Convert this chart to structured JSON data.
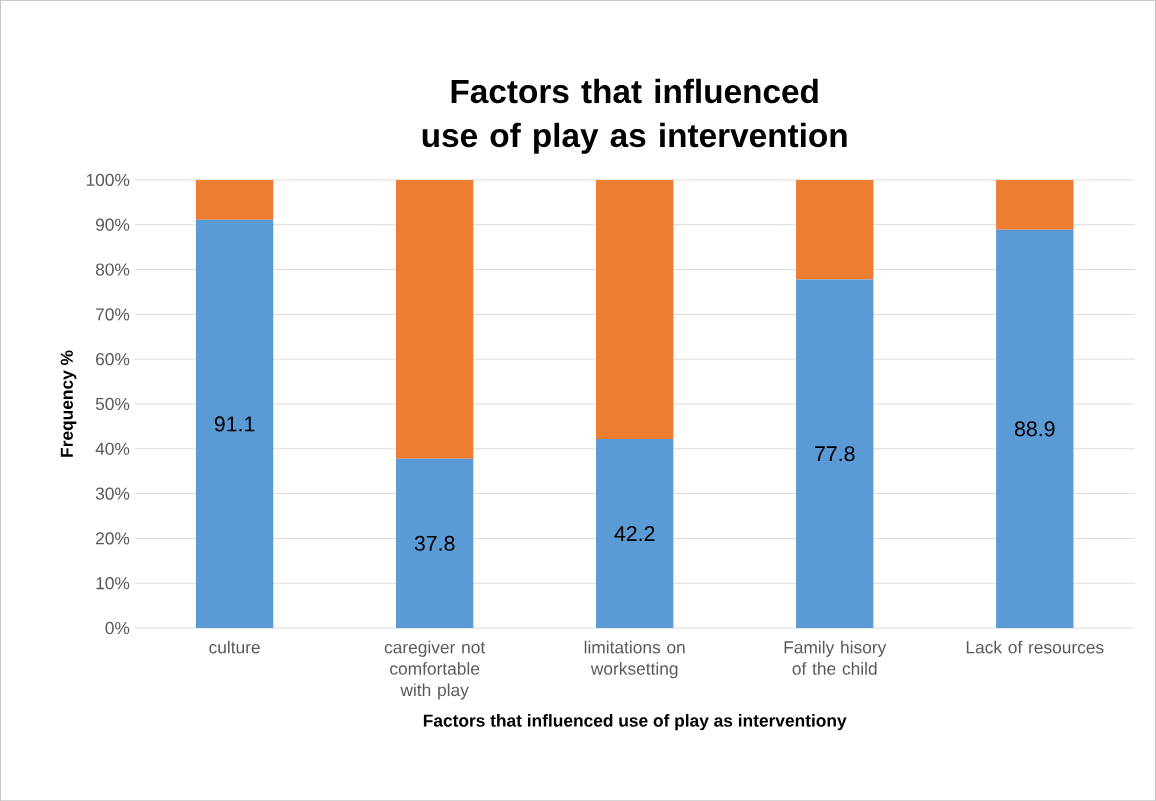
{
  "chart_data": {
    "type": "bar",
    "title": "Factors that influenced use of play as intervention",
    "xlabel": "Factors that influenced use of play as interventiony",
    "ylabel": "Frequency %",
    "categories": [
      "culture",
      "caregiver not comfortable with play",
      "limitations on worksetting",
      "Family hisory of the child",
      "Lack of resources"
    ],
    "series": [
      {
        "color": "#5b9bd5",
        "values": [
          91.1,
          37.8,
          42.2,
          77.8,
          88.9
        ],
        "value_labels": [
          "91.1",
          "37.8",
          "42.2",
          "77.8",
          "88.9"
        ]
      },
      {
        "color": "#ed7d31",
        "values": [
          8.9,
          62.2,
          57.8,
          22.2,
          11.1
        ]
      }
    ],
    "stacked": true,
    "ylim": [
      0,
      100
    ],
    "yticks": [
      {
        "value": 0,
        "label": "0%"
      },
      {
        "value": 10,
        "label": "10%"
      },
      {
        "value": 20,
        "label": "20%"
      },
      {
        "value": 30,
        "label": "30%"
      },
      {
        "value": 40,
        "label": "40%"
      },
      {
        "value": 50,
        "label": "50%"
      },
      {
        "value": 60,
        "label": "60%"
      },
      {
        "value": 70,
        "label": "70%"
      },
      {
        "value": 80,
        "label": "80%"
      },
      {
        "value": 90,
        "label": "90%"
      },
      {
        "value": 100,
        "label": "100%"
      }
    ],
    "grid": "y"
  }
}
